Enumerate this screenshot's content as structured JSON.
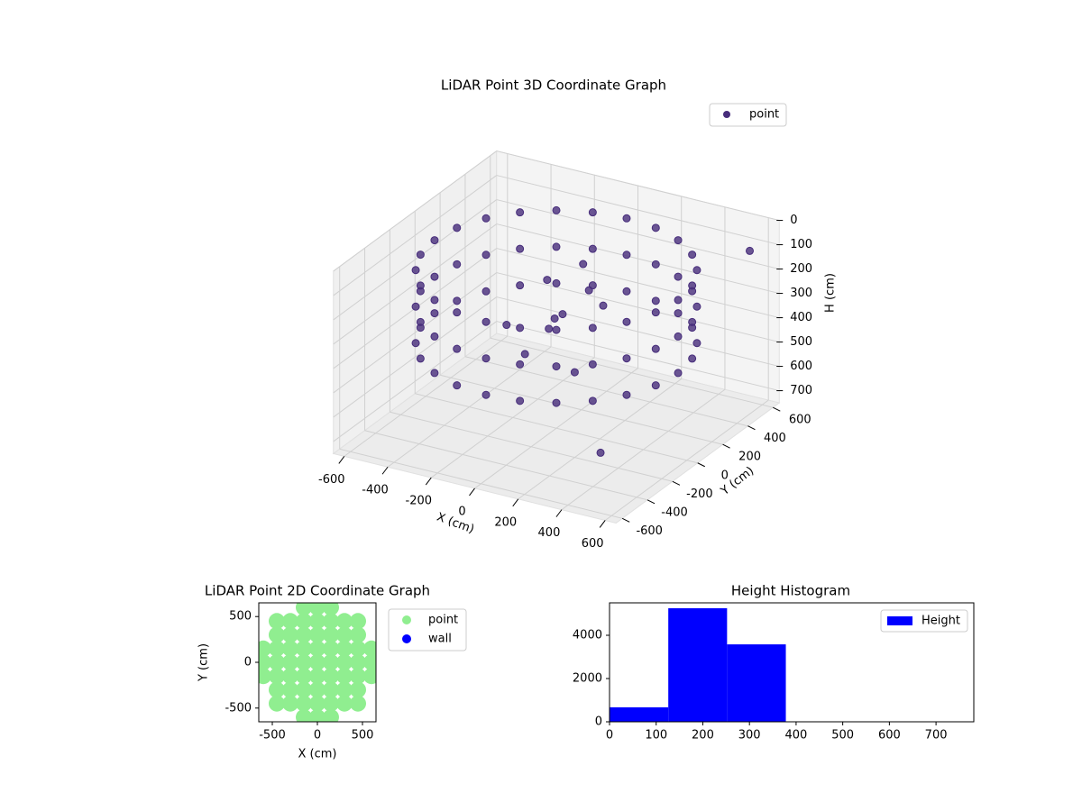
{
  "chart_data": [
    {
      "type": "scatter3d",
      "title": "LiDAR Point 3D Coordinate Graph",
      "xlabel": "X (cm)",
      "ylabel": "Y (cm)",
      "zlabel": "H (cm)",
      "xlim": [
        -650,
        650
      ],
      "ylim": [
        -650,
        650
      ],
      "zlim": [
        0,
        750
      ],
      "z_inverted": true,
      "xticks": [
        -600,
        -400,
        -200,
        0,
        200,
        400,
        600
      ],
      "yticks": [
        -600,
        -400,
        -200,
        0,
        200,
        400,
        600
      ],
      "zticks": [
        0,
        100,
        200,
        300,
        400,
        500,
        600,
        700
      ],
      "grid": true,
      "legend": "upper right",
      "series": [
        {
          "name": "point",
          "color": "#472d7b",
          "x": [
            560,
            541,
            485,
            396,
            280,
            145,
            0,
            -145,
            -280,
            -396,
            -485,
            -541,
            -560,
            -541,
            -485,
            -396,
            -280,
            -145,
            0,
            145,
            280,
            396,
            485,
            541,
            560,
            541,
            485,
            396,
            280,
            145,
            0,
            -145,
            -280,
            -396,
            -485,
            -541,
            -560,
            -541,
            -485,
            -396,
            -280,
            -145,
            0,
            145,
            280,
            396,
            485,
            541,
            560,
            541,
            485,
            396,
            280,
            145,
            0,
            -145,
            -280,
            -396,
            -485,
            -541,
            -560,
            -541,
            -485,
            -396,
            -280,
            -145,
            0,
            145,
            280,
            396,
            485,
            541,
            -100,
            0,
            50,
            -200,
            100,
            -50,
            200,
            150,
            -150,
            0,
            290,
            520
          ],
          "y": [
            0,
            145,
            280,
            396,
            485,
            541,
            560,
            541,
            485,
            396,
            280,
            145,
            0,
            -145,
            -280,
            -396,
            -485,
            -541,
            -560,
            -541,
            -485,
            -396,
            -280,
            -145,
            0,
            145,
            280,
            396,
            485,
            541,
            560,
            541,
            485,
            396,
            280,
            145,
            0,
            -145,
            -280,
            -396,
            -485,
            -541,
            -560,
            -541,
            -485,
            -396,
            -280,
            -145,
            0,
            145,
            280,
            396,
            485,
            541,
            560,
            541,
            485,
            396,
            280,
            145,
            0,
            -145,
            -280,
            -396,
            -485,
            -541,
            -560,
            -541,
            -485,
            -396,
            -280,
            -145,
            100,
            50,
            -100,
            -50,
            200,
            300,
            -200,
            0,
            200,
            -250,
            -150,
            640
          ],
          "z": [
            100,
            100,
            100,
            100,
            100,
            100,
            100,
            100,
            100,
            100,
            100,
            100,
            100,
            100,
            100,
            100,
            100,
            100,
            100,
            100,
            100,
            100,
            100,
            100,
            250,
            250,
            250,
            250,
            250,
            250,
            250,
            250,
            250,
            250,
            250,
            250,
            250,
            250,
            250,
            250,
            250,
            250,
            250,
            250,
            250,
            250,
            250,
            250,
            400,
            400,
            400,
            400,
            400,
            400,
            400,
            400,
            400,
            400,
            400,
            400,
            400,
            400,
            400,
            400,
            400,
            400,
            400,
            400,
            400,
            400,
            400,
            400,
            200,
            300,
            250,
            350,
            300,
            200,
            400,
            150,
            450,
            350,
            730,
            150
          ]
        }
      ]
    },
    {
      "type": "scatter",
      "title": "LiDAR Point 2D Coordinate Graph",
      "xlabel": "X (cm)",
      "ylabel": "Y (cm)",
      "xlim": [
        -650,
        650
      ],
      "ylim": [
        -650,
        650
      ],
      "xticks": [
        -500,
        0,
        500
      ],
      "yticks": [
        -500,
        0,
        500
      ],
      "legend": "outside right",
      "series": [
        {
          "name": "point",
          "color": "#90ee90",
          "x": [
            -600,
            -600,
            -600,
            -450,
            -450,
            -450,
            -450,
            -450,
            -450,
            -450,
            -300,
            -300,
            -300,
            -300,
            -300,
            -300,
            -300,
            -150,
            -150,
            -150,
            -150,
            -150,
            -150,
            -150,
            -150,
            -150,
            0,
            0,
            0,
            0,
            0,
            0,
            0,
            0,
            0,
            150,
            150,
            150,
            150,
            150,
            150,
            150,
            150,
            150,
            300,
            300,
            300,
            300,
            300,
            300,
            300,
            450,
            450,
            450,
            450,
            450,
            450,
            450,
            600,
            600,
            600
          ],
          "y": [
            -150,
            0,
            150,
            -450,
            -300,
            -150,
            0,
            150,
            300,
            450,
            -450,
            -300,
            -150,
            0,
            150,
            300,
            450,
            -600,
            -450,
            -300,
            -150,
            0,
            150,
            300,
            450,
            600,
            -600,
            -450,
            -300,
            -150,
            0,
            150,
            300,
            450,
            600,
            -600,
            -450,
            -300,
            -150,
            0,
            150,
            300,
            450,
            600,
            -450,
            -300,
            -150,
            0,
            150,
            300,
            450,
            -450,
            -300,
            -150,
            0,
            150,
            300,
            450,
            -150,
            0,
            150
          ]
        },
        {
          "name": "wall",
          "color": "#0000ff",
          "x": [],
          "y": []
        }
      ]
    },
    {
      "type": "histogram",
      "title": "Height Histogram",
      "bins": [
        0,
        126,
        252,
        378,
        504,
        630,
        756
      ],
      "xlim": [
        0,
        781
      ],
      "ylim": [
        0,
        5500
      ],
      "xticks": [
        0,
        100,
        200,
        300,
        400,
        500,
        600,
        700
      ],
      "yticks": [
        0,
        2000,
        4000
      ],
      "legend": "upper right",
      "series": [
        {
          "name": "Height",
          "color": "#0000ff",
          "values": [
            670,
            5250,
            3580,
            0,
            0,
            0
          ]
        }
      ]
    }
  ]
}
